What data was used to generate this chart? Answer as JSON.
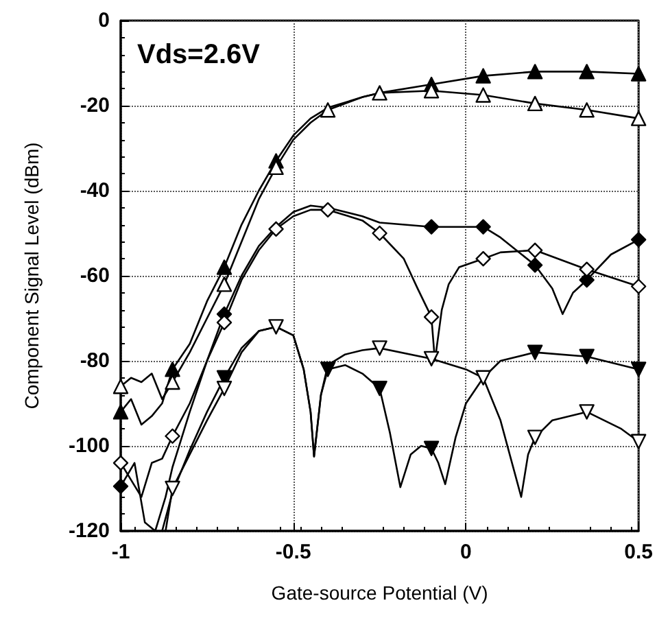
{
  "chart_data": {
    "type": "line",
    "xlabel": "Gate-source Potential (V)",
    "ylabel": "Component Signal Level (dBm)",
    "annotations": [
      "Vds=2.6V"
    ],
    "xlim": [
      -1,
      0.5
    ],
    "xticks": [
      -1,
      -0.5,
      0,
      0.5
    ],
    "ylim": [
      -120,
      0
    ],
    "yticks": [
      -120,
      -100,
      -80,
      -60,
      -40,
      -20,
      0
    ],
    "grid": true,
    "series": [
      {
        "type": "line",
        "color": "#000000",
        "x": [
          -1,
          -0.97,
          -0.94,
          -0.91,
          -0.88,
          -0.85,
          -0.8,
          -0.75,
          -0.7,
          -0.65,
          -0.6,
          -0.55,
          -0.5,
          -0.45,
          -0.4,
          -0.3,
          -0.25,
          -0.1,
          0.05,
          0.2,
          0.35,
          0.5
        ],
        "values": [
          -92,
          -89,
          -95,
          -93,
          -90,
          -82,
          -76,
          -66,
          -58,
          -48,
          -40,
          -33,
          -27,
          -23,
          -20.5,
          -18,
          -17,
          -15,
          -13,
          -12,
          -12,
          -12.5
        ]
      },
      {
        "type": "line",
        "color": "#000000",
        "x": [
          -1,
          -0.97,
          -0.94,
          -0.91,
          -0.88,
          -0.85,
          -0.8,
          -0.75,
          -0.7,
          -0.65,
          -0.6,
          -0.55,
          -0.5,
          -0.45,
          -0.4,
          -0.3,
          -0.25,
          -0.1,
          0.05,
          0.2,
          0.35,
          0.5
        ],
        "values": [
          -86,
          -84,
          -85,
          -83,
          -89,
          -85,
          -78,
          -70,
          -62,
          -52,
          -42,
          -34.5,
          -28,
          -24,
          -21,
          -18,
          -17,
          -16.5,
          -17.5,
          -19.5,
          -21,
          -23
        ]
      },
      {
        "type": "line",
        "color": "#000000",
        "x": [
          -1,
          -0.96,
          -0.93,
          -0.9,
          -0.87,
          -0.85,
          -0.8,
          -0.75,
          -0.7,
          -0.65,
          -0.6,
          -0.55,
          -0.5,
          -0.45,
          -0.4,
          -0.3,
          -0.25,
          -0.1,
          0.05,
          0.1,
          0.2,
          0.25,
          0.28,
          0.31,
          0.35,
          0.42,
          0.5
        ],
        "values": [
          -109.5,
          -104,
          -118,
          -120,
          -112,
          -105,
          -92,
          -80,
          -69,
          -60,
          -53,
          -48.5,
          -45,
          -43.5,
          -44,
          -46,
          -47.5,
          -48.5,
          -48.5,
          -51,
          -57.5,
          -63,
          -69,
          -64,
          -61,
          -55,
          -51.5
        ]
      },
      {
        "type": "line",
        "color": "#000000",
        "x": [
          -1,
          -0.97,
          -0.94,
          -0.91,
          -0.88,
          -0.85,
          -0.8,
          -0.75,
          -0.7,
          -0.65,
          -0.6,
          -0.55,
          -0.5,
          -0.45,
          -0.4,
          -0.3,
          -0.25,
          -0.18,
          -0.14,
          -0.1,
          -0.09,
          -0.07,
          -0.05,
          -0.02,
          0.05,
          0.1,
          0.2,
          0.35,
          0.5
        ],
        "values": [
          -104,
          -108,
          -112,
          -104,
          -103,
          -97.7,
          -90,
          -80,
          -71,
          -61,
          -54,
          -49,
          -46,
          -44.5,
          -44.5,
          -47,
          -50,
          -56,
          -63,
          -69.7,
          -80,
          -68,
          -62,
          -58,
          -56,
          -54.5,
          -54,
          -58.5,
          -62.5
        ]
      },
      {
        "type": "line",
        "color": "#000000",
        "x": [
          -0.88,
          -0.85,
          -0.8,
          -0.75,
          -0.7,
          -0.65,
          -0.6,
          -0.55,
          -0.5,
          -0.47,
          -0.45,
          -0.44,
          -0.42,
          -0.4,
          -0.35,
          -0.3,
          -0.25,
          -0.22,
          -0.19,
          -0.16,
          -0.13,
          -0.1,
          -0.08,
          -0.06,
          -0.03,
          0,
          0.05,
          0.1,
          0.2,
          0.35,
          0.5
        ],
        "values": [
          -120,
          -111,
          -101,
          -92,
          -84,
          -77,
          -73,
          -72,
          -74,
          -82,
          -92,
          -102.5,
          -88,
          -82,
          -81,
          -83,
          -86.5,
          -97,
          -109.7,
          -102,
          -100,
          -100.6,
          -104,
          -109,
          -98,
          -90,
          -84,
          -80,
          -78,
          -79,
          -82
        ]
      },
      {
        "type": "line",
        "color": "#000000",
        "x": [
          -0.87,
          -0.85,
          -0.8,
          -0.75,
          -0.7,
          -0.65,
          -0.6,
          -0.55,
          -0.5,
          -0.47,
          -0.45,
          -0.44,
          -0.42,
          -0.4,
          -0.35,
          -0.3,
          -0.25,
          -0.1,
          0,
          0.05,
          0.1,
          0.14,
          0.16,
          0.18,
          0.2,
          0.25,
          0.35,
          0.45,
          0.5
        ],
        "values": [
          -120,
          -110,
          -102,
          -94,
          -86.5,
          -78,
          -73,
          -72,
          -74,
          -82,
          -92,
          -102.5,
          -88,
          -81,
          -78.5,
          -77.5,
          -77,
          -79.5,
          -82,
          -84,
          -94,
          -106,
          -112,
          -102,
          -98,
          -94,
          -92,
          -96,
          -99
        ]
      },
      {
        "type": "scatter",
        "marker": "triangle",
        "color": "#000000",
        "x": [
          -1,
          -0.85,
          -0.7,
          -0.55,
          -0.1,
          0.05,
          0.2,
          0.35,
          0.5
        ],
        "values": [
          -92,
          -82,
          -58,
          -33,
          -15,
          -13,
          -12,
          -12,
          -12.5
        ]
      },
      {
        "type": "scatter",
        "marker": "triangle",
        "color": "#ffffff",
        "x": [
          -1,
          -0.85,
          -0.7,
          -0.55,
          -0.4,
          -0.25,
          -0.1,
          0.05,
          0.2,
          0.35,
          0.5
        ],
        "values": [
          -86,
          -85,
          -62,
          -34.5,
          -21,
          -17,
          -16.5,
          -17.5,
          -19.5,
          -21,
          -23
        ]
      },
      {
        "type": "scatter",
        "marker": "diamond",
        "color": "#000000",
        "x": [
          -1,
          -0.7,
          -0.55,
          -0.1,
          0.05,
          0.2,
          0.35,
          0.5
        ],
        "values": [
          -109.5,
          -69,
          null,
          -48.5,
          -48.5,
          -57.5,
          -61,
          -51.5
        ]
      },
      {
        "type": "scatter",
        "marker": "diamond",
        "color": "#ffffff",
        "x": [
          -1,
          -0.85,
          -0.7,
          -0.55,
          -0.4,
          -0.25,
          -0.1,
          0.05,
          0.2,
          0.35,
          0.5
        ],
        "values": [
          -104,
          -97.7,
          -71,
          -49,
          -44.5,
          -50,
          -69.7,
          -56,
          -54,
          -58.5,
          -62.5
        ]
      },
      {
        "type": "scatter",
        "marker": "triangle_down",
        "color": "#000000",
        "x": [
          -0.7,
          -0.4,
          -0.25,
          -0.1,
          0.2,
          0.35,
          0.5
        ],
        "values": [
          -84,
          -82,
          -86.5,
          -100.6,
          -78,
          -79,
          -82
        ]
      },
      {
        "type": "scatter",
        "marker": "triangle_down",
        "color": "#ffffff",
        "x": [
          -0.85,
          -0.7,
          -0.55,
          -0.25,
          -0.1,
          0.05,
          0.2,
          0.35,
          0.5
        ],
        "values": [
          -110,
          -86.5,
          -72,
          -77,
          -79.5,
          -84,
          -98,
          -92,
          -99
        ]
      }
    ]
  }
}
